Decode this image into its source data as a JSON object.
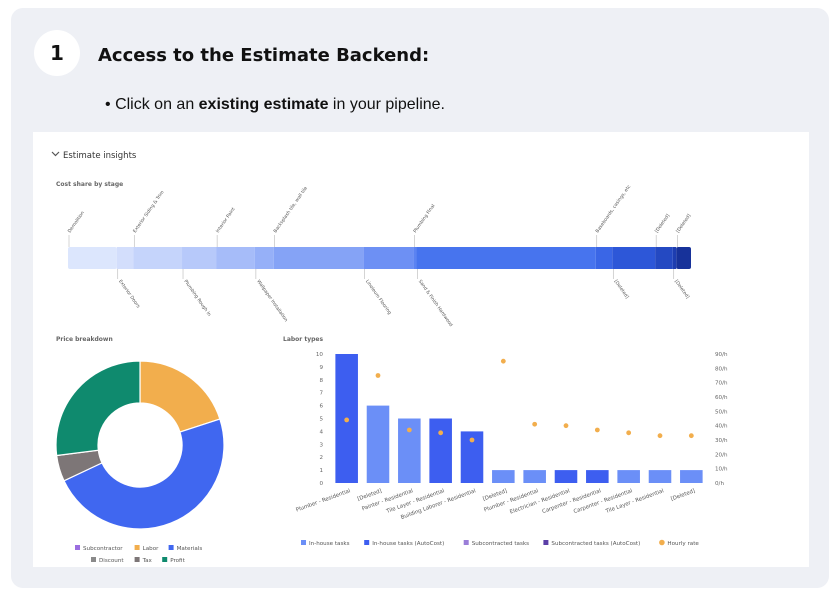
{
  "step": {
    "number": "1",
    "title": "Access to the Estimate Backend:",
    "bullet_mark": "•",
    "bullet_prefix": "Click on an ",
    "bullet_bold": "existing estimate",
    "bullet_suffix": " in your pipeline."
  },
  "insights": {
    "header": "Estimate insights",
    "cost_share": {
      "title": "Cost share by stage",
      "segments": [
        {
          "label": "Demolition",
          "share": 0.083,
          "color": "#dce6fd"
        },
        {
          "label": "Exterior Doors",
          "share": 0.028,
          "color": "#d3defc"
        },
        {
          "label": "Exterior Siding & Trim",
          "share": 0.083,
          "color": "#c5d4fb"
        },
        {
          "label": "Plumbing Rough In",
          "share": 0.058,
          "color": "#b7c9fa"
        },
        {
          "label": "Interior Paint",
          "share": 0.066,
          "color": "#a6bcf9"
        },
        {
          "label": "Wallpaper Installation",
          "share": 0.032,
          "color": "#96b0f8"
        },
        {
          "label": "Backsplash tile, wall tile",
          "share": 0.153,
          "color": "#85a3f6"
        },
        {
          "label": "Linoleum Flooring",
          "share": 0.085,
          "color": "#6d90f4"
        },
        {
          "label": "Plumbing Final",
          "share": 0.005,
          "color": "#5b83f2"
        },
        {
          "label": "Sand & Finish Hardwood",
          "share": 0.305,
          "color": "#4774ee"
        },
        {
          "label": "Baseboards, casings, etc",
          "share": 0.028,
          "color": "#3a66e6"
        },
        {
          "label": "[Deleted]",
          "share": 0.073,
          "color": "#2d57d8"
        },
        {
          "label": "[Deleted]",
          "share": 0.03,
          "color": "#2449c2"
        },
        {
          "label": "[Deleted]",
          "share": 0.006,
          "color": "#1d3db0"
        },
        {
          "label": "[Deleted]",
          "share": 0.025,
          "color": "#17329a"
        }
      ]
    },
    "price_breakdown": {
      "title": "Price breakdown",
      "chart_data": {
        "type": "pie",
        "categories": [
          "Subcontractor",
          "Labor",
          "Materials",
          "Discount",
          "Tax",
          "Profit"
        ],
        "values": [
          0,
          20,
          48,
          0,
          5,
          27
        ],
        "colors": [
          "#9b6ee0",
          "#f2ae4d",
          "#4067f0",
          "#8a8a8a",
          "#7d7677",
          "#0f8a6e"
        ]
      },
      "legend_row1": [
        {
          "label": "Subcontractor",
          "color": "#9b6ee0"
        },
        {
          "label": "Labor",
          "color": "#f2ae4d"
        },
        {
          "label": "Materials",
          "color": "#4067f0"
        }
      ],
      "legend_row2": [
        {
          "label": "Discount",
          "color": "#8a8a8a"
        },
        {
          "label": "Tax",
          "color": "#7d7677"
        },
        {
          "label": "Profit",
          "color": "#0f8a6e"
        }
      ]
    },
    "labor_types": {
      "title": "Labor types",
      "chart_data": {
        "type": "bar",
        "categories": [
          "Plumber - Residential",
          "[Deleted]",
          "Painter - Residential",
          "Tile Layer - Residential",
          "Building Laborer - Residential",
          "[Deleted]",
          "Plumber - Residential",
          "Electrician - Residential",
          "Carpenter - Residential",
          "Carpenter - Residential",
          "Tile Layer - Residential",
          "[Deleted]"
        ],
        "values": [
          10,
          6,
          5,
          5,
          4,
          1,
          1,
          1,
          1,
          1,
          1,
          1
        ],
        "bar_series": [
          "In-house tasks (AutoCost)",
          "In-house tasks",
          "In-house tasks",
          "In-house tasks (AutoCost)",
          "In-house tasks (AutoCost)",
          "In-house tasks",
          "In-house tasks",
          "In-house tasks (AutoCost)",
          "In-house tasks (AutoCost)",
          "In-house tasks",
          "In-house tasks",
          "In-house tasks"
        ],
        "hourly_rate": [
          44,
          75,
          37,
          35,
          30,
          85,
          41,
          40,
          37,
          35,
          33,
          33
        ],
        "ylim": [
          0,
          10
        ],
        "yticks": [
          "0",
          "1",
          "2",
          "3",
          "4",
          "5",
          "6",
          "7",
          "8",
          "9",
          "10"
        ],
        "y2lim": [
          0,
          90
        ],
        "y2ticks": [
          "0/h",
          "10/h",
          "20/h",
          "30/h",
          "40/h",
          "50/h",
          "60/h",
          "70/h",
          "80/h",
          "90/h"
        ]
      },
      "legend": [
        {
          "label": "In-house tasks",
          "color": "#6b8ff7",
          "shape": "square"
        },
        {
          "label": "In-house tasks (AutoCost)",
          "color": "#3d5ef0",
          "shape": "square"
        },
        {
          "label": "Subcontracted tasks",
          "color": "#9a7ed8",
          "shape": "square"
        },
        {
          "label": "Subcontracted tasks (AutoCost)",
          "color": "#5b3fa7",
          "shape": "square"
        },
        {
          "label": "Hourly rate",
          "color": "#f2ae4d",
          "shape": "circle"
        }
      ]
    }
  },
  "colors": {
    "card": "#eef0f5",
    "inhouse": "#6b8ff7",
    "inhouse_autocost": "#3d5ef0",
    "hourly_rate": "#f2ae4d"
  }
}
